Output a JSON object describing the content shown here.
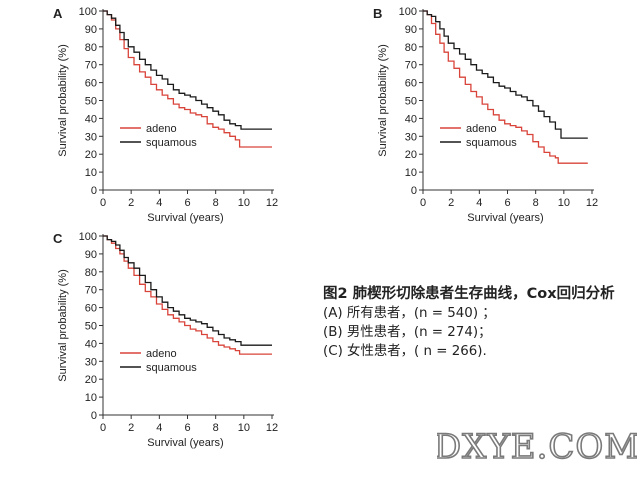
{
  "chart_data": [
    {
      "type": "line",
      "panel_label": "A",
      "ylabel": "Survival probability (%)",
      "xlabel": "Survival (years)",
      "x_ticks": [
        "0",
        "2",
        "4",
        "6",
        "8",
        "10",
        "12"
      ],
      "y_ticks": [
        "0",
        "10",
        "20",
        "30",
        "40",
        "50",
        "60",
        "70",
        "80",
        "90",
        "100"
      ],
      "xlim": [
        0,
        12
      ],
      "ylim": [
        0,
        100
      ],
      "grid": false,
      "legend_position": "lower-left",
      "step": true,
      "series": [
        {
          "name": "adeno",
          "color": "#d9443a",
          "points": [
            [
              0,
              100
            ],
            [
              0.3,
              98
            ],
            [
              0.6,
              95
            ],
            [
              0.9,
              90
            ],
            [
              1.2,
              84
            ],
            [
              1.5,
              79
            ],
            [
              1.8,
              74
            ],
            [
              2.2,
              70
            ],
            [
              2.6,
              66
            ],
            [
              3,
              63
            ],
            [
              3.4,
              59
            ],
            [
              3.8,
              56
            ],
            [
              4.2,
              53
            ],
            [
              4.6,
              51
            ],
            [
              5,
              48
            ],
            [
              5.4,
              46
            ],
            [
              5.8,
              45
            ],
            [
              6.2,
              43
            ],
            [
              6.6,
              42
            ],
            [
              7,
              41
            ],
            [
              7.4,
              37
            ],
            [
              7.8,
              35
            ],
            [
              8.2,
              34
            ],
            [
              8.6,
              32
            ],
            [
              9,
              30
            ],
            [
              9.4,
              28
            ],
            [
              9.7,
              24
            ],
            [
              12,
              24
            ]
          ]
        },
        {
          "name": "squamous",
          "color": "#1a1a1a",
          "points": [
            [
              0,
              100
            ],
            [
              0.3,
              98
            ],
            [
              0.6,
              96
            ],
            [
              0.9,
              92
            ],
            [
              1.2,
              88
            ],
            [
              1.5,
              84
            ],
            [
              1.8,
              80
            ],
            [
              2.2,
              77
            ],
            [
              2.6,
              73
            ],
            [
              3,
              70
            ],
            [
              3.4,
              67
            ],
            [
              3.8,
              64
            ],
            [
              4.2,
              62
            ],
            [
              4.6,
              59
            ],
            [
              5,
              56
            ],
            [
              5.4,
              54
            ],
            [
              5.8,
              53
            ],
            [
              6.2,
              52
            ],
            [
              6.6,
              50
            ],
            [
              7,
              48
            ],
            [
              7.4,
              46
            ],
            [
              7.8,
              44
            ],
            [
              8.2,
              42
            ],
            [
              8.6,
              39
            ],
            [
              9,
              37
            ],
            [
              9.4,
              36
            ],
            [
              9.8,
              34
            ],
            [
              12,
              34
            ]
          ]
        }
      ]
    },
    {
      "type": "line",
      "panel_label": "B",
      "ylabel": "Survival probability (%)",
      "xlabel": "Survival (years)",
      "x_ticks": [
        "0",
        "2",
        "4",
        "6",
        "8",
        "10",
        "12"
      ],
      "y_ticks": [
        "0",
        "10",
        "20",
        "30",
        "40",
        "50",
        "60",
        "70",
        "80",
        "90",
        "100"
      ],
      "xlim": [
        0,
        12
      ],
      "ylim": [
        0,
        100
      ],
      "grid": false,
      "legend_position": "lower-left",
      "step": true,
      "series": [
        {
          "name": "adeno",
          "color": "#d9443a",
          "points": [
            [
              0,
              100
            ],
            [
              0.3,
              98
            ],
            [
              0.6,
              93
            ],
            [
              0.9,
              87
            ],
            [
              1.2,
              82
            ],
            [
              1.5,
              77
            ],
            [
              1.8,
              72
            ],
            [
              2.2,
              68
            ],
            [
              2.6,
              63
            ],
            [
              3,
              59
            ],
            [
              3.4,
              55
            ],
            [
              3.8,
              52
            ],
            [
              4.2,
              48
            ],
            [
              4.6,
              45
            ],
            [
              5,
              42
            ],
            [
              5.4,
              39
            ],
            [
              5.8,
              37
            ],
            [
              6.2,
              36
            ],
            [
              6.6,
              35
            ],
            [
              7,
              33
            ],
            [
              7.4,
              31
            ],
            [
              7.8,
              27
            ],
            [
              8.2,
              24
            ],
            [
              8.6,
              21
            ],
            [
              9,
              19
            ],
            [
              9.4,
              18
            ],
            [
              9.6,
              15
            ],
            [
              11.7,
              15
            ]
          ]
        },
        {
          "name": "squamous",
          "color": "#1a1a1a",
          "points": [
            [
              0,
              100
            ],
            [
              0.3,
              98
            ],
            [
              0.6,
              97
            ],
            [
              0.9,
              94
            ],
            [
              1.2,
              90
            ],
            [
              1.5,
              86
            ],
            [
              1.8,
              82
            ],
            [
              2.2,
              79
            ],
            [
              2.6,
              76
            ],
            [
              3,
              73
            ],
            [
              3.4,
              70
            ],
            [
              3.8,
              67
            ],
            [
              4.2,
              65
            ],
            [
              4.6,
              63
            ],
            [
              5,
              60
            ],
            [
              5.4,
              58
            ],
            [
              5.8,
              57
            ],
            [
              6.2,
              55
            ],
            [
              6.6,
              53
            ],
            [
              7,
              52
            ],
            [
              7.4,
              50
            ],
            [
              7.8,
              47
            ],
            [
              8.2,
              44
            ],
            [
              8.6,
              41
            ],
            [
              9,
              38
            ],
            [
              9.4,
              34
            ],
            [
              9.8,
              29
            ],
            [
              11.7,
              29
            ]
          ]
        }
      ]
    },
    {
      "type": "line",
      "panel_label": "C",
      "ylabel": "Survival probability (%)",
      "xlabel": "Survival (years)",
      "x_ticks": [
        "0",
        "2",
        "4",
        "6",
        "8",
        "10",
        "12"
      ],
      "y_ticks": [
        "0",
        "10",
        "20",
        "30",
        "40",
        "50",
        "60",
        "70",
        "80",
        "90",
        "100"
      ],
      "xlim": [
        0,
        12
      ],
      "ylim": [
        0,
        100
      ],
      "grid": false,
      "legend_position": "lower-left",
      "step": true,
      "series": [
        {
          "name": "adeno",
          "color": "#d9443a",
          "points": [
            [
              0,
              100
            ],
            [
              0.3,
              98
            ],
            [
              0.6,
              96
            ],
            [
              0.9,
              93
            ],
            [
              1.2,
              90
            ],
            [
              1.5,
              86
            ],
            [
              1.8,
              82
            ],
            [
              2.2,
              78
            ],
            [
              2.6,
              73
            ],
            [
              3,
              69
            ],
            [
              3.4,
              66
            ],
            [
              3.8,
              62
            ],
            [
              4.2,
              59
            ],
            [
              4.6,
              56
            ],
            [
              5,
              54
            ],
            [
              5.4,
              52
            ],
            [
              5.8,
              50
            ],
            [
              6.2,
              48
            ],
            [
              6.6,
              47
            ],
            [
              7,
              45
            ],
            [
              7.4,
              43
            ],
            [
              7.8,
              41
            ],
            [
              8.2,
              39
            ],
            [
              8.6,
              38
            ],
            [
              9,
              37
            ],
            [
              9.4,
              36
            ],
            [
              9.7,
              34
            ],
            [
              12,
              34
            ]
          ]
        },
        {
          "name": "squamous",
          "color": "#1a1a1a",
          "points": [
            [
              0,
              100
            ],
            [
              0.3,
              98
            ],
            [
              0.6,
              97
            ],
            [
              0.9,
              95
            ],
            [
              1.2,
              92
            ],
            [
              1.5,
              88
            ],
            [
              1.8,
              85
            ],
            [
              2.2,
              82
            ],
            [
              2.6,
              78
            ],
            [
              3,
              74
            ],
            [
              3.4,
              70
            ],
            [
              3.8,
              66
            ],
            [
              4.2,
              63
            ],
            [
              4.6,
              60
            ],
            [
              5,
              58
            ],
            [
              5.4,
              56
            ],
            [
              5.8,
              54
            ],
            [
              6.2,
              53
            ],
            [
              6.6,
              52
            ],
            [
              7,
              51
            ],
            [
              7.4,
              49
            ],
            [
              7.8,
              47
            ],
            [
              8.2,
              45
            ],
            [
              8.6,
              43
            ],
            [
              9,
              42
            ],
            [
              9.4,
              41
            ],
            [
              9.8,
              39
            ],
            [
              12,
              39
            ]
          ]
        }
      ]
    }
  ],
  "caption": {
    "title": "图2 肺楔形切除患者生存曲线，Cox回归分析",
    "lines": [
      "(A) 所有患者，(n = 540) ；",
      "(B) 男性患者，(n = 274)；",
      "(C) 女性患者，( n = 266)."
    ]
  },
  "watermark": "DXYE.COM"
}
